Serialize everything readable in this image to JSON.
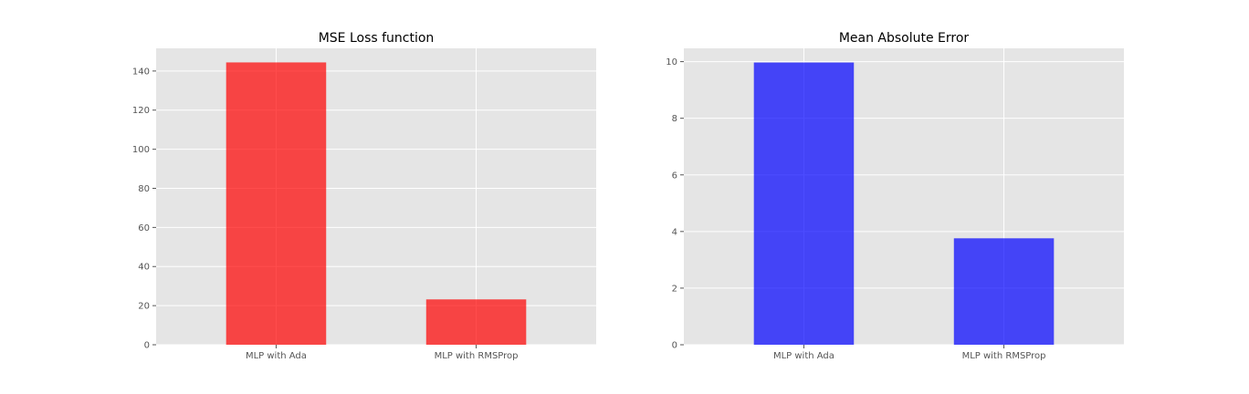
{
  "chart_data": [
    {
      "type": "bar",
      "title": "MSE Loss function",
      "xlabel": "",
      "ylabel": "",
      "categories": [
        "MLP with Ada",
        "MLP with RMSProp"
      ],
      "values": [
        144.4,
        23.2
      ],
      "ylim": [
        0,
        151.6
      ],
      "yticks": [
        0,
        20,
        40,
        60,
        80,
        100,
        120,
        140
      ],
      "color": "#ff0000",
      "grid": true
    },
    {
      "type": "bar",
      "title": "Mean Absolute Error",
      "xlabel": "",
      "ylabel": "",
      "categories": [
        "MLP with Ada",
        "MLP with RMSProp"
      ],
      "values": [
        9.97,
        3.76
      ],
      "ylim": [
        0,
        10.47
      ],
      "yticks": [
        0,
        2,
        4,
        6,
        8,
        10
      ],
      "color": "#0000ff",
      "grid": true
    }
  ],
  "style": {
    "axes_background": "#e5e5e5",
    "grid_color": "#ffffff",
    "bar_opacity": 0.7
  }
}
